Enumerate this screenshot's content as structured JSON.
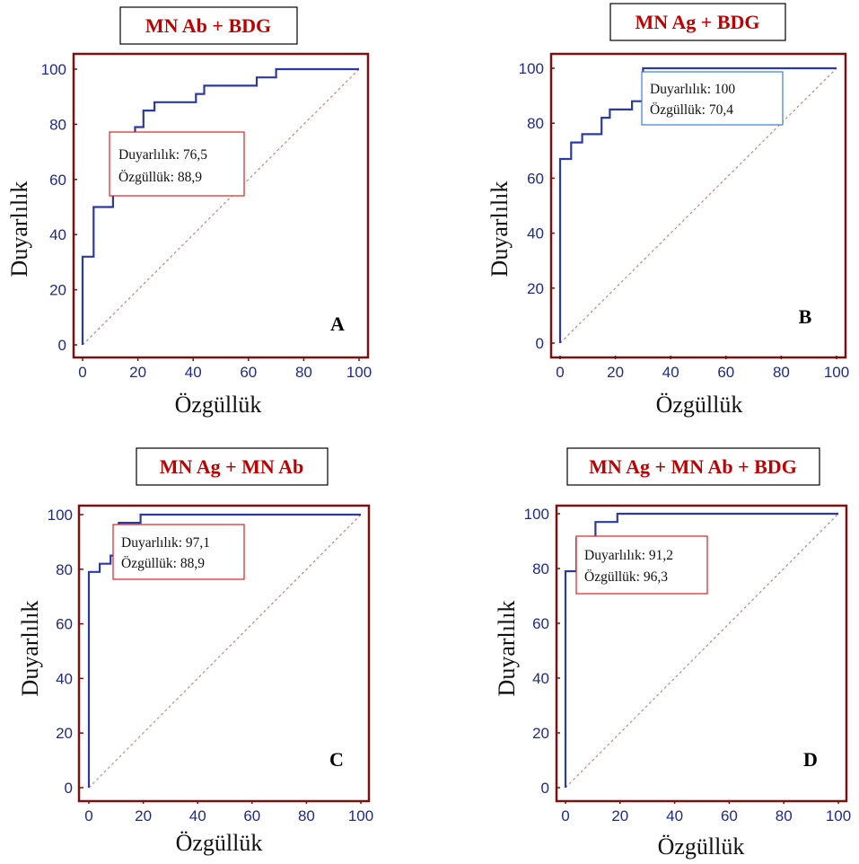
{
  "colors": {
    "frame": "#7a1010",
    "roc_line": "#2b3aa0",
    "diagonal": "#d08080",
    "title_text": "#c00000",
    "title_border": "#000000",
    "box_border_red": "#e02020",
    "box_border_blue": "#3a7fd0",
    "tick_text": "#1f2a8a"
  },
  "chart_data": [
    {
      "type": "line",
      "title": "MN Ab + BDG",
      "xlabel": "Özgüllük",
      "ylabel": "Duyarlılık",
      "panel_letter": "A",
      "xlim": [
        0,
        100
      ],
      "ylim": [
        0,
        100
      ],
      "x_ticks": [
        "0",
        "20",
        "40",
        "60",
        "80",
        "100"
      ],
      "y_ticks": [
        "0",
        "20",
        "40",
        "60",
        "80",
        "100"
      ],
      "grid": false,
      "diagonal_reference": true,
      "annotation": {
        "line1": "Duyarlılık: 76,5",
        "line2": "Özgüllük: 88,9",
        "border": "red"
      },
      "series": [
        {
          "x": [
            0,
            0,
            4,
            4,
            11,
            11,
            19,
            19,
            22,
            22,
            26,
            26,
            41,
            41,
            44,
            44,
            63,
            63,
            70,
            70,
            100
          ],
          "y": [
            0,
            32,
            32,
            50,
            50,
            76,
            76,
            79,
            79,
            85,
            85,
            88,
            88,
            91,
            91,
            94,
            94,
            97,
            97,
            100,
            100
          ]
        }
      ]
    },
    {
      "type": "line",
      "title": "MN Ag + BDG",
      "xlabel": "Özgüllük",
      "ylabel": "Duyarlılık",
      "panel_letter": "B",
      "xlim": [
        0,
        100
      ],
      "ylim": [
        0,
        100
      ],
      "x_ticks": [
        "0",
        "20",
        "40",
        "60",
        "80",
        "100"
      ],
      "y_ticks": [
        "0",
        "20",
        "40",
        "60",
        "80",
        "100"
      ],
      "grid": false,
      "diagonal_reference": true,
      "annotation": {
        "line1": "Duyarlılık: 100",
        "line2": "Özgüllük: 70,4",
        "border": "blue"
      },
      "series": [
        {
          "x": [
            0,
            0,
            4,
            4,
            8,
            8,
            15,
            15,
            18,
            18,
            26,
            26,
            30,
            30,
            100
          ],
          "y": [
            0,
            67,
            67,
            73,
            73,
            76,
            76,
            82,
            82,
            85,
            85,
            88,
            88,
            100,
            100
          ]
        }
      ]
    },
    {
      "type": "line",
      "title": "MN Ag + MN Ab",
      "xlabel": "Özgüllük",
      "ylabel": "Duyarlılık",
      "panel_letter": "C",
      "xlim": [
        0,
        100
      ],
      "ylim": [
        0,
        100
      ],
      "x_ticks": [
        "0",
        "20",
        "40",
        "60",
        "80",
        "100"
      ],
      "y_ticks": [
        "0",
        "20",
        "40",
        "60",
        "80",
        "100"
      ],
      "grid": false,
      "diagonal_reference": true,
      "annotation": {
        "line1": "Duyarlılık: 97,1",
        "line2": "Özgüllük: 88,9",
        "border": "red"
      },
      "series": [
        {
          "x": [
            0,
            0,
            4,
            4,
            8,
            8,
            11,
            11,
            19,
            19,
            100
          ],
          "y": [
            0,
            79,
            79,
            82,
            82,
            85,
            85,
            97,
            97,
            100,
            100
          ]
        }
      ]
    },
    {
      "type": "line",
      "title": "MN Ag + MN Ab + BDG",
      "xlabel": "Özgüllük",
      "ylabel": "Duyarlılık",
      "panel_letter": "D",
      "xlim": [
        0,
        100
      ],
      "ylim": [
        0,
        100
      ],
      "x_ticks": [
        "0",
        "20",
        "40",
        "60",
        "80",
        "100"
      ],
      "y_ticks": [
        "0",
        "20",
        "40",
        "60",
        "80",
        "100"
      ],
      "grid": false,
      "diagonal_reference": true,
      "annotation": {
        "line1": "Duyarlılık: 91,2",
        "line2": "Özgüllük: 96,3",
        "border": "red"
      },
      "series": [
        {
          "x": [
            0,
            0,
            4,
            4,
            11,
            11,
            19,
            19,
            100
          ],
          "y": [
            0,
            79,
            79,
            91,
            91,
            97,
            97,
            100,
            100
          ]
        }
      ]
    }
  ]
}
